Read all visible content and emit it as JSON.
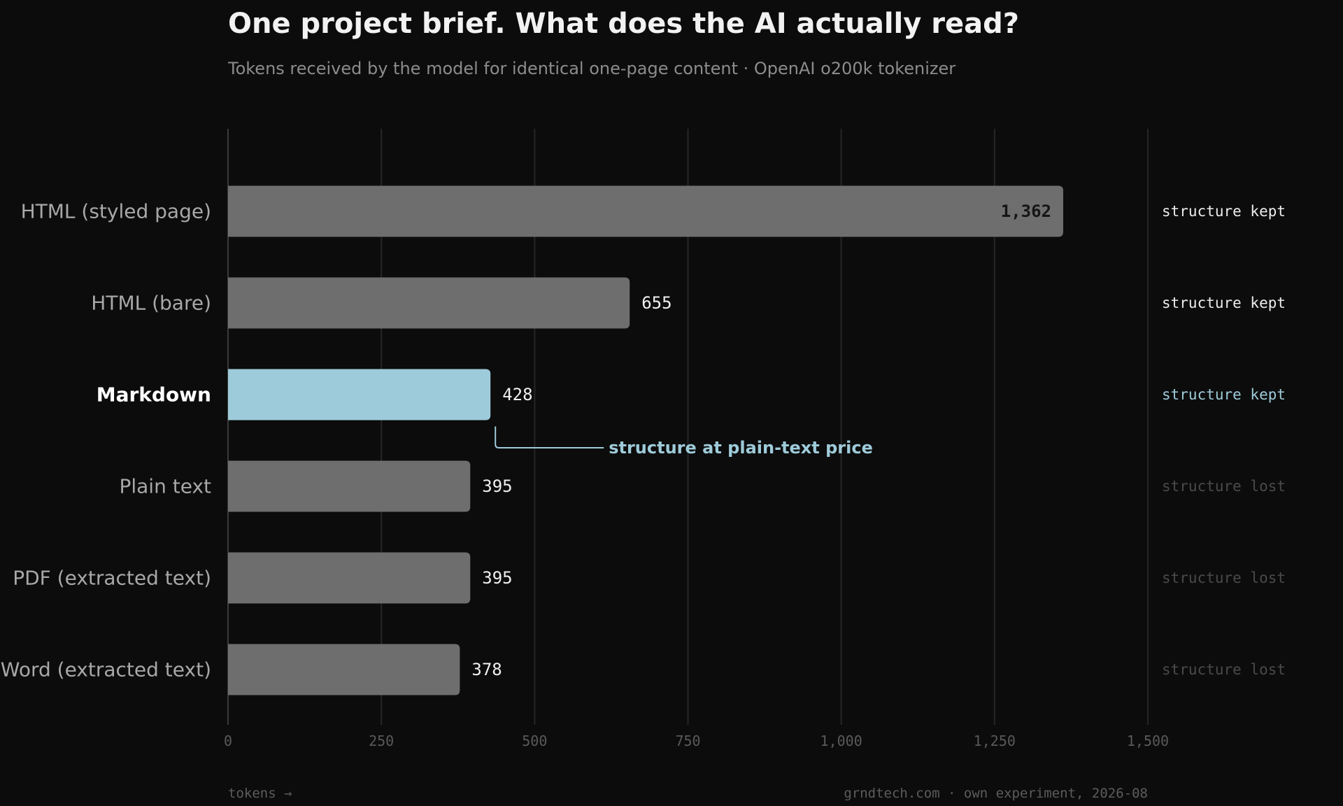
{
  "chart_data": {
    "type": "bar",
    "orientation": "horizontal",
    "title": "One project brief. What does the AI actually read?",
    "subtitle": "Tokens received by the model for identical one-page content · OpenAI o200k tokenizer",
    "categories": [
      "HTML (styled page)",
      "HTML (bare)",
      "Markdown",
      "Plain text",
      "PDF (extracted text)",
      "Word (extracted text)"
    ],
    "values": [
      1362,
      655,
      428,
      395,
      395,
      378
    ],
    "value_labels": [
      "1,362",
      "655",
      "428",
      "395",
      "395",
      "378"
    ],
    "tags": [
      "structure kept",
      "structure kept",
      "structure kept",
      "structure lost",
      "structure lost",
      "structure lost"
    ],
    "highlight": "Markdown",
    "xlim": [
      0,
      1500
    ],
    "xticks": [
      0,
      250,
      500,
      750,
      1000,
      1250,
      1500
    ],
    "xtick_labels": [
      "0",
      "250",
      "500",
      "750",
      "1,000",
      "1,250",
      "1,500"
    ],
    "xlabel": "tokens →",
    "grid": true,
    "annotation": {
      "category": "Markdown",
      "text": "structure at plain-text price"
    },
    "source": "grndtech.com · own experiment, 2026-08"
  },
  "colors": {
    "background": "#0c0c0c",
    "bar": "#6e6e6e",
    "highlight": "#9ecbd9",
    "grid": "#262626",
    "tag_kept": "#ececec",
    "tag_lost": "#4a4a4a"
  }
}
